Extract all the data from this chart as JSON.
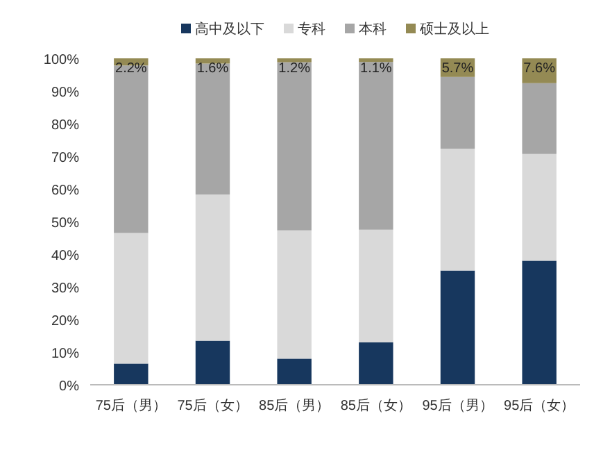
{
  "chart_data": {
    "type": "bar",
    "stacked": true,
    "categories": [
      "75后（男）",
      "75后（女）",
      "85后（男）",
      "85后（女）",
      "95后（男）",
      "95后（女）"
    ],
    "series": [
      {
        "name": "高中及以下",
        "color": "#17375e",
        "values": [
          6.5,
          13.5,
          8,
          13,
          35,
          38
        ]
      },
      {
        "name": "专科",
        "color": "#d9d9d9",
        "values": [
          40,
          44.8,
          39.3,
          34.5,
          37.3,
          32.7
        ]
      },
      {
        "name": "本科",
        "color": "#a6a6a6",
        "values": [
          51.3,
          40.1,
          51.5,
          51.4,
          22,
          21.7
        ]
      },
      {
        "name": "硕士及以上",
        "color": "#948a54",
        "values": [
          2.2,
          1.6,
          1.2,
          1.1,
          5.7,
          7.6
        ],
        "value_labels": [
          "2.2%",
          "1.6%",
          "1.2%",
          "1.1%",
          "5.7%",
          "7.6%"
        ]
      }
    ],
    "ylim": [
      0,
      100
    ],
    "yticks": [
      {
        "value": 0,
        "label": "0%"
      },
      {
        "value": 10,
        "label": "10%"
      },
      {
        "value": 20,
        "label": "20%"
      },
      {
        "value": 30,
        "label": "30%"
      },
      {
        "value": 40,
        "label": "40%"
      },
      {
        "value": 50,
        "label": "50%"
      },
      {
        "value": 60,
        "label": "60%"
      },
      {
        "value": 70,
        "label": "70%"
      },
      {
        "value": 80,
        "label": "80%"
      },
      {
        "value": 90,
        "label": "90%"
      },
      {
        "value": 100,
        "label": "100%"
      }
    ],
    "legend": "top",
    "grid": false
  }
}
